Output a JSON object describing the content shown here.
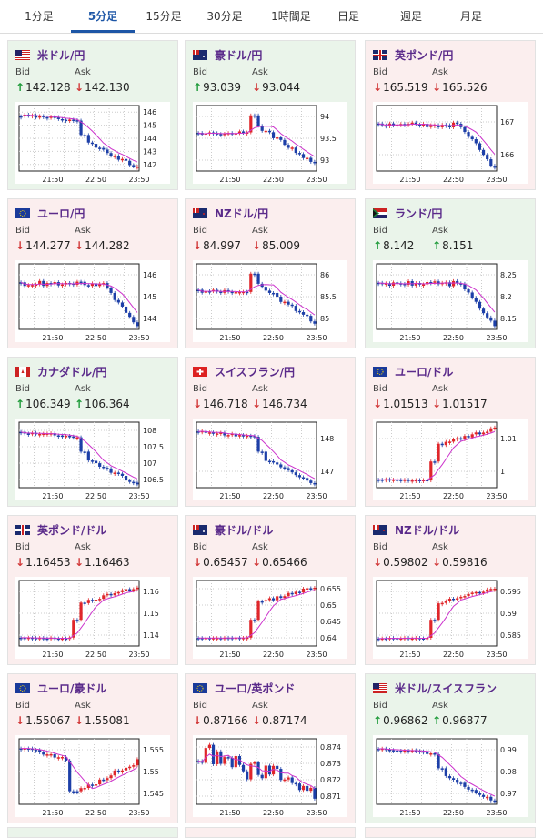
{
  "tabs": [
    {
      "label": "1分足",
      "active": false
    },
    {
      "label": "5分足",
      "active": true
    },
    {
      "label": "15分足",
      "active": false
    },
    {
      "label": "30分足",
      "active": false
    },
    {
      "label": "1時間足",
      "active": false
    },
    {
      "label": "日足",
      "active": false
    },
    {
      "label": "週足",
      "active": false
    },
    {
      "label": "月足",
      "active": false
    }
  ],
  "labels": {
    "bid": "Bid",
    "ask": "Ask"
  },
  "colors": {
    "up": "#1f9b3a",
    "down": "#d23a3a",
    "candle_up": "#e0262a",
    "candle_down": "#1d3fa8",
    "ma": "#cc33cc",
    "signal": "#22aadd"
  },
  "cards": [
    {
      "pair": "米ドル/円",
      "flag": "us",
      "trend": "up",
      "bid": "142.128",
      "bid_dir": "up",
      "ask": "142.130",
      "ask_dir": "down",
      "chart": {
        "x_labels": [
          "21:50",
          "22:50",
          "23:50"
        ],
        "y_ticks": [
          "146",
          "145",
          "144",
          "143",
          "142"
        ],
        "shape": "drop"
      }
    },
    {
      "pair": "豪ドル/円",
      "flag": "au",
      "trend": "up",
      "bid": "93.039",
      "bid_dir": "up",
      "ask": "93.044",
      "ask_dir": "down",
      "chart": {
        "x_labels": [
          "21:50",
          "22:50",
          "23:50"
        ],
        "y_ticks": [
          "94",
          "93.5",
          "93"
        ],
        "shape": "spike_drop"
      }
    },
    {
      "pair": "英ポンド/円",
      "flag": "uk",
      "trend": "down",
      "bid": "165.519",
      "bid_dir": "down",
      "ask": "165.526",
      "ask_dir": "down",
      "chart": {
        "x_labels": [
          "21:50",
          "22:50",
          "23:50"
        ],
        "y_ticks": [
          "167",
          "166"
        ],
        "shape": "flat_drop"
      }
    },
    {
      "pair": "ユーロ/円",
      "flag": "eu",
      "trend": "down",
      "bid": "144.277",
      "bid_dir": "down",
      "ask": "144.282",
      "ask_dir": "down",
      "chart": {
        "x_labels": [
          "21:50",
          "22:50",
          "23:50"
        ],
        "y_ticks": [
          "146",
          "145",
          "144"
        ],
        "shape": "flat_drop"
      }
    },
    {
      "pair": "NZドル/円",
      "flag": "nz",
      "trend": "down",
      "bid": "84.997",
      "bid_dir": "down",
      "ask": "85.009",
      "ask_dir": "down",
      "chart": {
        "x_labels": [
          "21:50",
          "22:50",
          "23:50"
        ],
        "y_ticks": [
          "86",
          "85.5",
          "85"
        ],
        "shape": "spike_drop"
      }
    },
    {
      "pair": "ランド/円",
      "flag": "za",
      "trend": "up",
      "bid": "8.142",
      "bid_dir": "up",
      "ask": "8.151",
      "ask_dir": "up",
      "chart": {
        "x_labels": [
          "21:50",
          "22:50",
          "23:50"
        ],
        "y_ticks": [
          "8.25",
          "8.2",
          "8.15"
        ],
        "shape": "flat_drop"
      }
    },
    {
      "pair": "カナダドル/円",
      "flag": "ca",
      "trend": "up",
      "bid": "106.349",
      "bid_dir": "up",
      "ask": "106.364",
      "ask_dir": "up",
      "chart": {
        "x_labels": [
          "21:50",
          "22:50",
          "23:50"
        ],
        "y_ticks": [
          "108",
          "107.5",
          "107",
          "106.5"
        ],
        "shape": "drop"
      }
    },
    {
      "pair": "スイスフラン/円",
      "flag": "ch",
      "trend": "down",
      "bid": "146.718",
      "bid_dir": "down",
      "ask": "146.734",
      "ask_dir": "down",
      "chart": {
        "x_labels": [
          "21:50",
          "22:50",
          "23:50"
        ],
        "y_ticks": [
          "148",
          "147"
        ],
        "shape": "drop"
      }
    },
    {
      "pair": "ユーロ/ドル",
      "flag": "eu",
      "trend": "down",
      "bid": "1.01513",
      "bid_dir": "down",
      "ask": "1.01517",
      "ask_dir": "down",
      "chart": {
        "x_labels": [
          "21:50",
          "22:50",
          "23:50"
        ],
        "y_ticks": [
          "1.01",
          "1"
        ],
        "shape": "rise"
      }
    },
    {
      "pair": "英ポンド/ドル",
      "flag": "uk",
      "trend": "down",
      "bid": "1.16453",
      "bid_dir": "down",
      "ask": "1.16463",
      "ask_dir": "down",
      "chart": {
        "x_labels": [
          "21:50",
          "22:50",
          "23:50"
        ],
        "y_ticks": [
          "1.16",
          "1.15",
          "1.14"
        ],
        "shape": "rise"
      }
    },
    {
      "pair": "豪ドル/ドル",
      "flag": "au",
      "trend": "down",
      "bid": "0.65457",
      "bid_dir": "down",
      "ask": "0.65466",
      "ask_dir": "down",
      "chart": {
        "x_labels": [
          "21:50",
          "22:50",
          "23:50"
        ],
        "y_ticks": [
          "0.655",
          "0.65",
          "0.645",
          "0.64"
        ],
        "shape": "rise"
      }
    },
    {
      "pair": "NZドル/ドル",
      "flag": "nz",
      "trend": "down",
      "bid": "0.59802",
      "bid_dir": "down",
      "ask": "0.59816",
      "ask_dir": "down",
      "chart": {
        "x_labels": [
          "21:50",
          "22:50",
          "23:50"
        ],
        "y_ticks": [
          "0.595",
          "0.59",
          "0.585"
        ],
        "shape": "rise"
      }
    },
    {
      "pair": "ユーロ/豪ドル",
      "flag": "eu",
      "trend": "down",
      "bid": "1.55067",
      "bid_dir": "down",
      "ask": "1.55081",
      "ask_dir": "down",
      "chart": {
        "x_labels": [
          "21:50",
          "22:50",
          "23:50"
        ],
        "y_ticks": [
          "1.555",
          "1.55",
          "1.545"
        ],
        "shape": "dip_recover"
      }
    },
    {
      "pair": "ユーロ/英ポンド",
      "flag": "eu",
      "trend": "down",
      "bid": "0.87166",
      "bid_dir": "down",
      "ask": "0.87174",
      "ask_dir": "down",
      "chart": {
        "x_labels": [
          "21:50",
          "22:50",
          "23:50"
        ],
        "y_ticks": [
          "0.874",
          "0.873",
          "0.872",
          "0.871"
        ],
        "shape": "noisy_drop"
      }
    },
    {
      "pair": "米ドル/スイスフラン",
      "flag": "us",
      "trend": "up",
      "bid": "0.96862",
      "bid_dir": "up",
      "ask": "0.96877",
      "ask_dir": "up",
      "chart": {
        "x_labels": [
          "21:50",
          "22:50",
          "23:50"
        ],
        "y_ticks": [
          "0.99",
          "0.98",
          "0.97"
        ],
        "shape": "drop"
      }
    }
  ]
}
